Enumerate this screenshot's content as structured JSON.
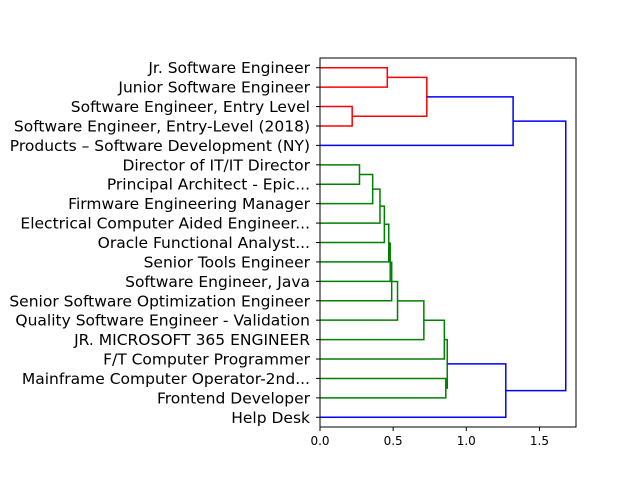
{
  "chart_data": {
    "type": "dendrogram",
    "orientation": "left",
    "xlim": [
      0,
      1.75
    ],
    "x_ticks": [
      0.0,
      0.5,
      1.0,
      1.5
    ],
    "x_tick_labels": [
      "0.0",
      "0.5",
      "1.0",
      "1.5"
    ],
    "colors": {
      "red_cluster": "#ff0000",
      "green_cluster": "#008000",
      "above_threshold": "#0000ff"
    },
    "leaves": [
      "Jr. Software Engineer",
      "Junior Software Engineer",
      "Software Engineer, Entry Level",
      "Software Engineer, Entry-Level (2018)",
      "Products – Software Development (NY)",
      "Director of IT/IT Director",
      "Principal Architect - Epic...",
      "Firmware Engineering Manager",
      "Electrical Computer Aided Engineer...",
      "Oracle Functional Analyst...",
      "Senior Tools Engineer",
      "Software Engineer, Java",
      "Senior Software Optimization Engineer",
      "Quality Software Engineer - Validation",
      "JR. MICROSOFT 365 ENGINEER",
      "F/T Computer Programmer",
      "Mainframe Computer Operator-2nd...",
      "Frontend Developer",
      "Help Desk"
    ],
    "merges": [
      {
        "a": 0,
        "b": 1,
        "height": 0.46,
        "color": "red_cluster"
      },
      {
        "a": 2,
        "b": 3,
        "height": 0.22,
        "color": "red_cluster"
      },
      {
        "a": 19,
        "b": 20,
        "height": 0.73,
        "color": "red_cluster"
      },
      {
        "a": 21,
        "b": 4,
        "height": 1.32,
        "color": "above_threshold"
      },
      {
        "a": 5,
        "b": 6,
        "height": 0.27,
        "color": "green_cluster"
      },
      {
        "a": 23,
        "b": 7,
        "height": 0.36,
        "color": "green_cluster"
      },
      {
        "a": 24,
        "b": 8,
        "height": 0.41,
        "color": "green_cluster"
      },
      {
        "a": 25,
        "b": 9,
        "height": 0.44,
        "color": "green_cluster"
      },
      {
        "a": 26,
        "b": 10,
        "height": 0.47,
        "color": "green_cluster"
      },
      {
        "a": 27,
        "b": 11,
        "height": 0.48,
        "color": "green_cluster"
      },
      {
        "a": 28,
        "b": 12,
        "height": 0.49,
        "color": "green_cluster"
      },
      {
        "a": 29,
        "b": 13,
        "height": 0.53,
        "color": "green_cluster"
      },
      {
        "a": 30,
        "b": 14,
        "height": 0.71,
        "color": "green_cluster"
      },
      {
        "a": 31,
        "b": 15,
        "height": 0.85,
        "color": "green_cluster"
      },
      {
        "a": 16,
        "b": 17,
        "height": 0.86,
        "color": "green_cluster"
      },
      {
        "a": 32,
        "b": 33,
        "height": 0.87,
        "color": "green_cluster"
      },
      {
        "a": 34,
        "b": 18,
        "height": 1.27,
        "color": "above_threshold"
      },
      {
        "a": 22,
        "b": 35,
        "height": 1.68,
        "color": "above_threshold"
      }
    ]
  }
}
